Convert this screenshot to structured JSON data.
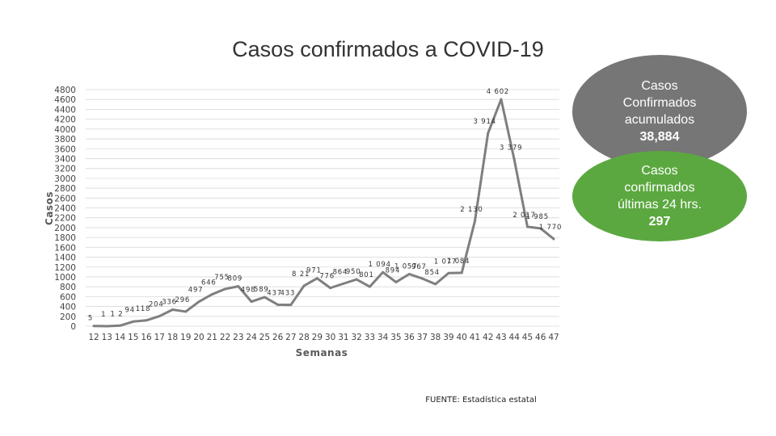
{
  "chart_data": {
    "type": "line",
    "title": "Casos confirmados a COVID-19",
    "xlabel": "Semanas",
    "ylabel": "Casos",
    "ylim": [
      0,
      4800
    ],
    "ytick_step": 200,
    "grid": true,
    "x": [
      12,
      13,
      14,
      15,
      16,
      17,
      18,
      19,
      20,
      21,
      22,
      23,
      24,
      25,
      26,
      27,
      28,
      29,
      30,
      31,
      32,
      33,
      34,
      35,
      36,
      37,
      38,
      39,
      40,
      41,
      42,
      43,
      44,
      45,
      46,
      47
    ],
    "series": [
      {
        "color": "#7f7f7f",
        "values": [
          5,
          1,
          12,
          94,
          118,
          204,
          336,
          296,
          497,
          646,
          755,
          809,
          498,
          589,
          437,
          433,
          821,
          971,
          776,
          864,
          950,
          801,
          1094,
          894,
          1057,
          967,
          854,
          1077,
          1084,
          2130,
          3914,
          4602,
          3379,
          2017,
          1985,
          1770
        ],
        "labels": [
          "5",
          "1",
          "1 2",
          "94",
          "118",
          "204",
          "336",
          "296",
          "497",
          "646",
          "755",
          "809",
          "498",
          "589",
          "437",
          "433",
          "8 21",
          "971",
          "776",
          "864",
          "950",
          "801",
          "1 094",
          "894",
          "1 057",
          "967",
          "854",
          "1 077",
          "1 084",
          "2 130",
          "3 914",
          "4 602",
          "3 379",
          "2 017",
          "1 985",
          "1 770"
        ]
      }
    ]
  },
  "source": "FUENTE: Estadística estatal",
  "summary": {
    "total": {
      "label": "Casos Confirmados acumulados",
      "value": "38,884",
      "color": "#767676"
    },
    "daily": {
      "label": "Casos confirmados últimas 24 hrs.",
      "value": "297",
      "color": "#5ba840"
    }
  }
}
